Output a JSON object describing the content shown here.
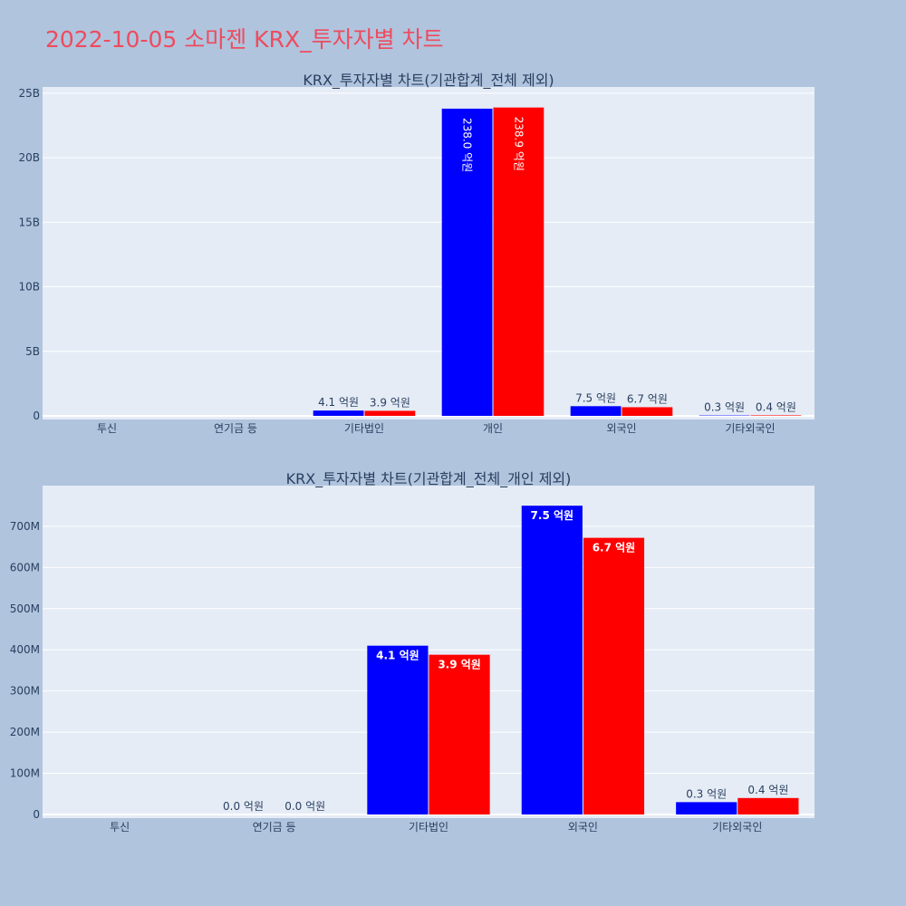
{
  "page": {
    "title": "2022-10-05 소마젠 KRX_투자자별 차트",
    "title_color": "#ee4b5e",
    "background": "#b0c4de",
    "plot_background": "#e5ecf6"
  },
  "chart_data": [
    {
      "type": "bar",
      "title": "KRX_투자자별 차트(기관합계_전체 제외)",
      "categories": [
        "투신",
        "연기금 등",
        "기타법인",
        "개인",
        "외국인",
        "기타외국인"
      ],
      "series": [
        {
          "color": "#0000ff",
          "values": [
            0,
            0,
            410000000,
            23800000000,
            750000000,
            30000000
          ],
          "labels": [
            "",
            "",
            "4.1 억원",
            "238.0 억원",
            "7.5 억원",
            "0.3 억원"
          ]
        },
        {
          "color": "#ff0000",
          "values": [
            0,
            0,
            390000000,
            23890000000,
            670000000,
            40000000
          ],
          "labels": [
            "",
            "",
            "3.9 억원",
            "238.9 억원",
            "6.7 억원",
            "0.4 억원"
          ]
        }
      ],
      "ylim": [
        0,
        25200000000
      ],
      "yticks": [
        0,
        5000000000,
        10000000000,
        15000000000,
        20000000000,
        25000000000
      ],
      "ytick_labels": [
        "0",
        "5B",
        "10B",
        "15B",
        "20B",
        "25B"
      ],
      "grid": true,
      "legend": "none"
    },
    {
      "type": "bar",
      "title": "KRX_투자자별 차트(기관합계_전체_개인 제외)",
      "categories": [
        "투신",
        "연기금 등",
        "기타법인",
        "외국인",
        "기타외국인"
      ],
      "series": [
        {
          "color": "#0000ff",
          "values": [
            0,
            0,
            410000000,
            750000000,
            30000000
          ],
          "labels": [
            "",
            "0.0 억원",
            "4.1 억원",
            "7.5 억원",
            "0.3 억원"
          ]
        },
        {
          "color": "#ff0000",
          "values": [
            0,
            0,
            388000000,
            672000000,
            40000000
          ],
          "labels": [
            "",
            "0.0 억원",
            "3.9 억원",
            "6.7 억원",
            "0.4 억원"
          ]
        }
      ],
      "ylim": [
        0,
        790000000
      ],
      "yticks": [
        0,
        100000000,
        200000000,
        300000000,
        400000000,
        500000000,
        600000000,
        700000000
      ],
      "ytick_labels": [
        "0",
        "100M",
        "200M",
        "300M",
        "400M",
        "500M",
        "600M",
        "700M"
      ],
      "grid": true,
      "legend": "none"
    }
  ]
}
